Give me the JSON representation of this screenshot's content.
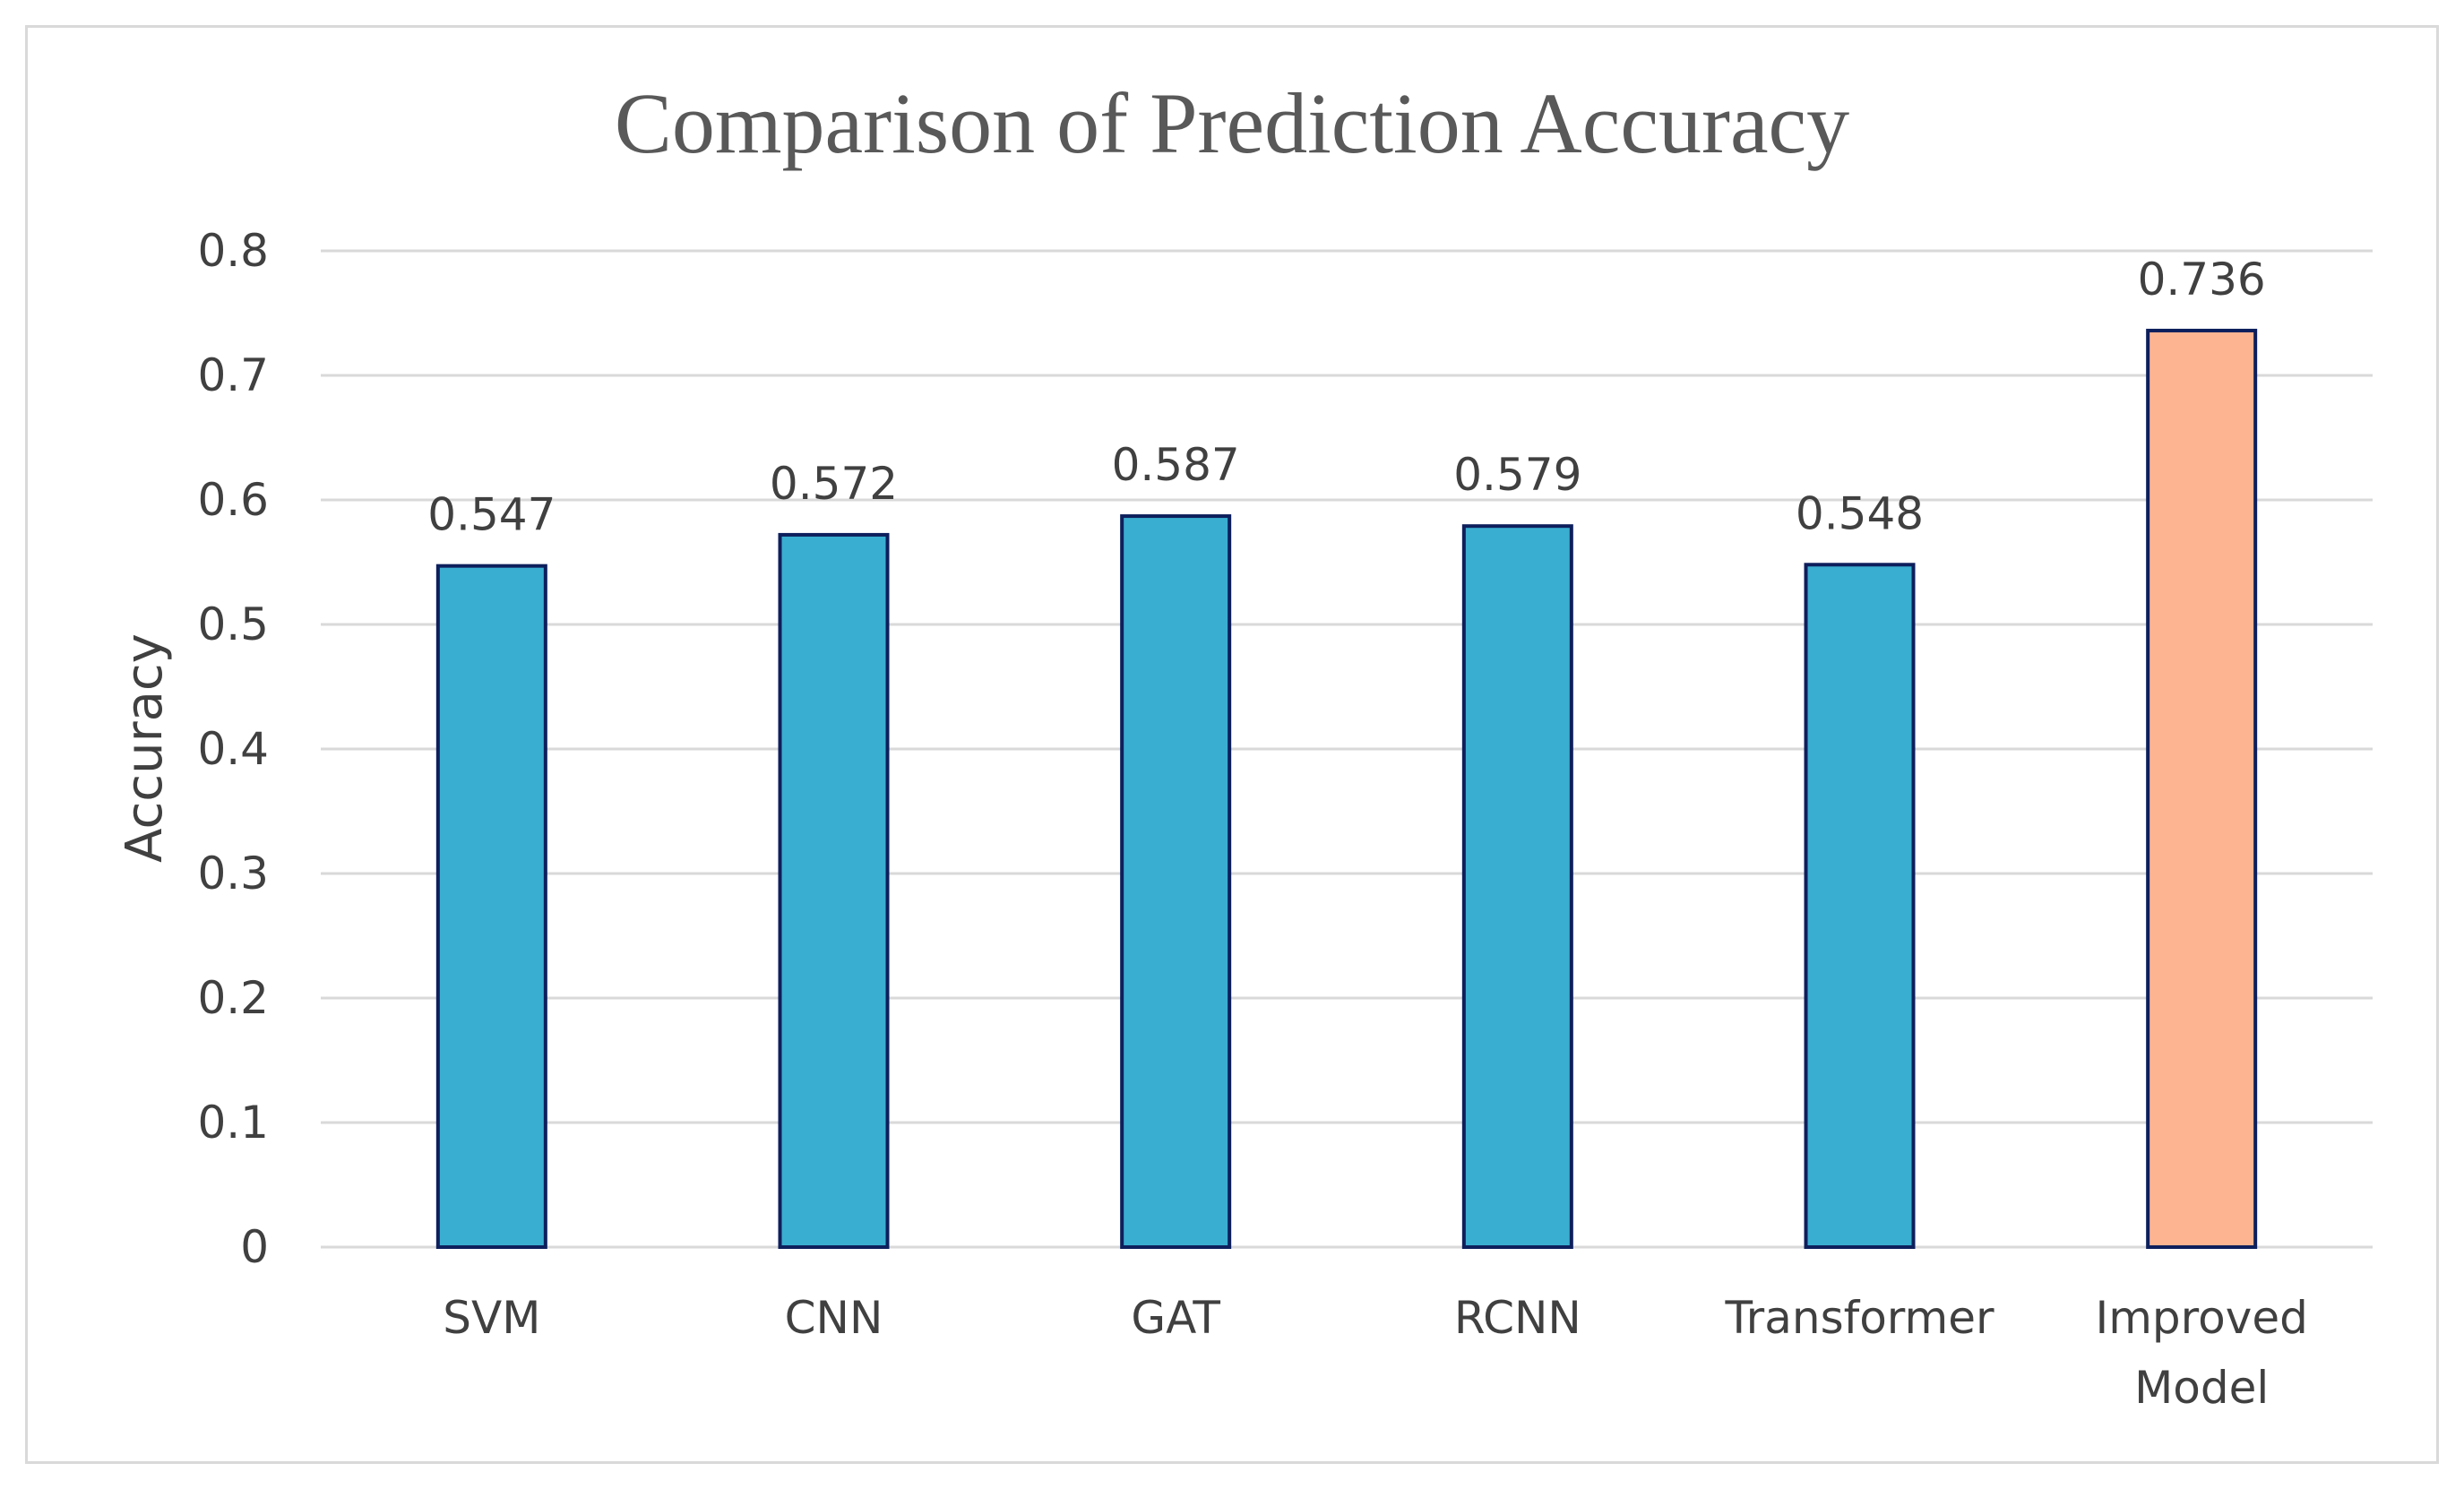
{
  "chart_data": {
    "type": "bar",
    "title": "Comparison of Prediction Accuracy",
    "xlabel": "",
    "ylabel": "Accuracy",
    "ylim": [
      0,
      0.8
    ],
    "yticks": [
      "0",
      "0.1",
      "0.2",
      "0.3",
      "0.4",
      "0.5",
      "0.6",
      "0.7",
      "0.8"
    ],
    "grid": true,
    "legend": "none",
    "categories": [
      "SVM",
      "CNN",
      "GAT",
      "RCNN",
      "Transformer",
      "Improved Model"
    ],
    "values": [
      0.547,
      0.572,
      0.587,
      0.579,
      0.548,
      0.736
    ],
    "data_labels": [
      "0.547",
      "0.572",
      "0.587",
      "0.579",
      "0.548",
      "0.736"
    ],
    "colors": {
      "bar_default": "#3aaed0",
      "bar_highlight": "#fdb491",
      "bar_outline": "#0d1f5c",
      "gridline": "#d9d9d9",
      "text": "#404040",
      "title": "#595959"
    }
  }
}
